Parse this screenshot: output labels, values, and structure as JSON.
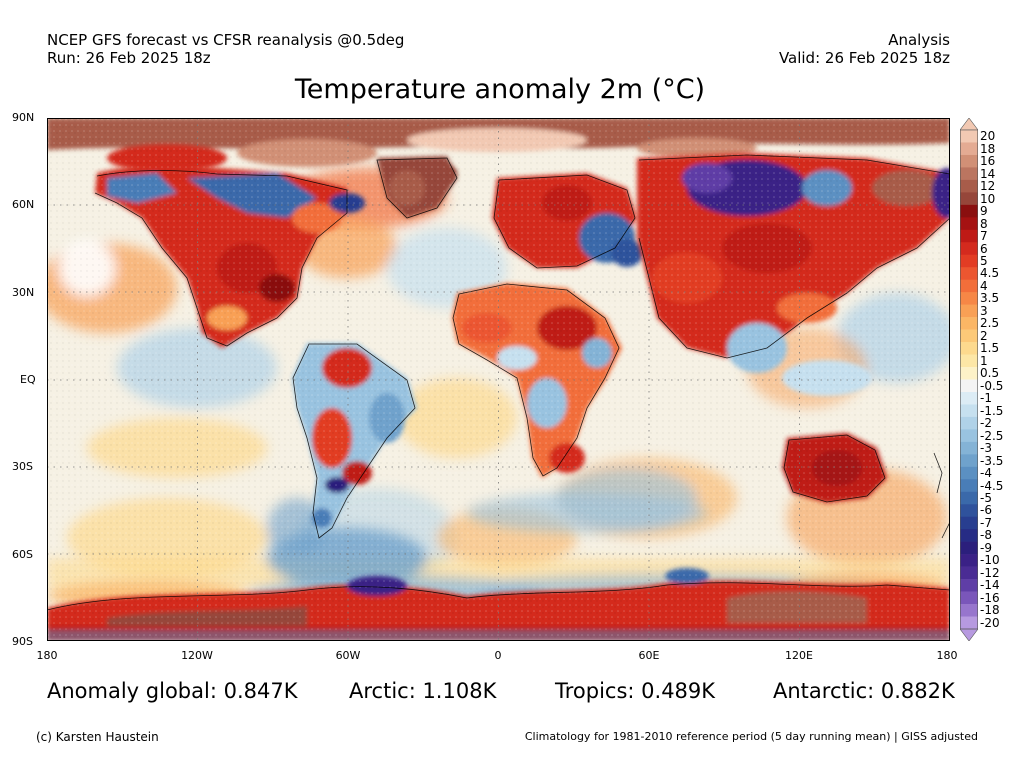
{
  "header": {
    "left_line1": "NCEP GFS forecast vs CFSR reanalysis @0.5deg",
    "left_line2": "Run: 26 Feb 2025 18z",
    "right_line1": "Analysis",
    "right_line2": "Valid: 26 Feb 2025 18z"
  },
  "title": "Temperature anomaly 2m (°C)",
  "map": {
    "lat_labels": [
      "90N",
      "60N",
      "30N",
      "EQ",
      "30S",
      "60S",
      "90S"
    ],
    "lon_labels": [
      "180",
      "120W",
      "60W",
      "0",
      "60E",
      "120E",
      "180"
    ]
  },
  "colorbar": {
    "labels": [
      "20",
      "18",
      "16",
      "14",
      "12",
      "10",
      "9",
      "8",
      "7",
      "6",
      "5",
      "4.5",
      "4",
      "3.5",
      "3",
      "2.5",
      "2",
      "1.5",
      "1",
      "0.5",
      "-0.5",
      "-1",
      "-1.5",
      "-2",
      "-2.5",
      "-3",
      "-3.5",
      "-4",
      "-4.5",
      "-5",
      "-6",
      "-7",
      "-8",
      "-9",
      "-10",
      "-12",
      "-14",
      "-16",
      "-18",
      "-20"
    ],
    "colors": [
      "#f2c9b3",
      "#e4ab93",
      "#d19076",
      "#bb7560",
      "#a85c4a",
      "#96463a",
      "#8a0f0f",
      "#a51212",
      "#bf1a16",
      "#d42a1e",
      "#e23c24",
      "#ec5630",
      "#f26e3a",
      "#f68746",
      "#f9a055",
      "#fbb665",
      "#fcc978",
      "#fdda8e",
      "#fde7a6",
      "#fdf2c8",
      "#f4f4f4",
      "#dcecf5",
      "#c6e0ef",
      "#b0d2e8",
      "#99c3e0",
      "#84b3d6",
      "#6fa2cc",
      "#5b90c2",
      "#497db7",
      "#3a69aa",
      "#2f529c",
      "#283e90",
      "#262c85",
      "#2b1f7c",
      "#3a2186",
      "#4a2c94",
      "#5f3ea6",
      "#7a56ba",
      "#9775cd",
      "#b79ae0"
    ]
  },
  "stats": {
    "global": "Anomaly global: 0.847K",
    "arctic": "Arctic: 1.108K",
    "tropics": "Tropics: 0.489K",
    "antarctic": "Antarctic: 0.882K"
  },
  "footer": {
    "credit": "(c) Karsten Haustein",
    "note": "Climatology for 1981-2010 reference period (5 day running mean) | GISS adjusted"
  }
}
